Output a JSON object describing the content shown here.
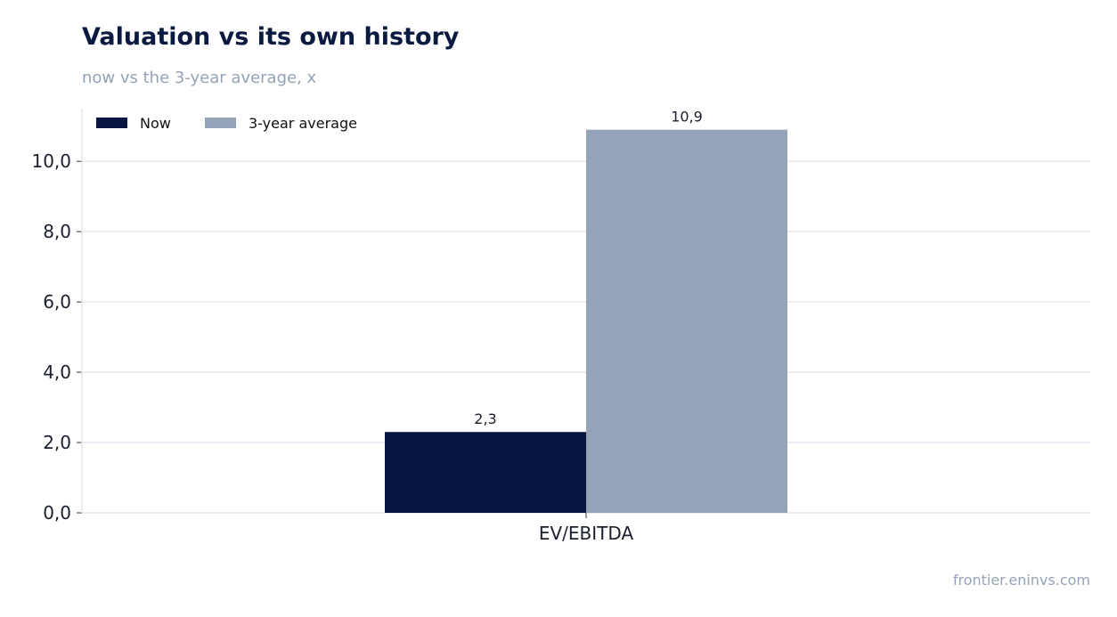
{
  "header": {
    "title": "Valuation vs its own history",
    "subtitle": "now vs the 3-year average, x"
  },
  "footer": {
    "source": "frontier.eninvs.com"
  },
  "chart_data": {
    "type": "bar",
    "title": "Valuation vs its own history",
    "subtitle": "now vs the 3-year average, x",
    "categories": [
      "EV/EBITDA"
    ],
    "series": [
      {
        "name": "Now",
        "values": [
          2.3
        ],
        "color": "#061640",
        "labels": [
          "2,3"
        ]
      },
      {
        "name": "3-year average",
        "values": [
          10.9
        ],
        "color": "#94a3b8",
        "labels": [
          "10,9"
        ]
      }
    ],
    "ylim": [
      0,
      11.5
    ],
    "yticks": [
      0,
      2,
      4,
      6,
      8,
      10
    ],
    "ytick_labels": [
      "0,0",
      "2,0",
      "4,0",
      "6,0",
      "8,0",
      "10,0"
    ],
    "xlabel": "",
    "ylabel": "",
    "grid": true,
    "legend_position": "top-left",
    "gridline_color": "#e2e8f0"
  }
}
